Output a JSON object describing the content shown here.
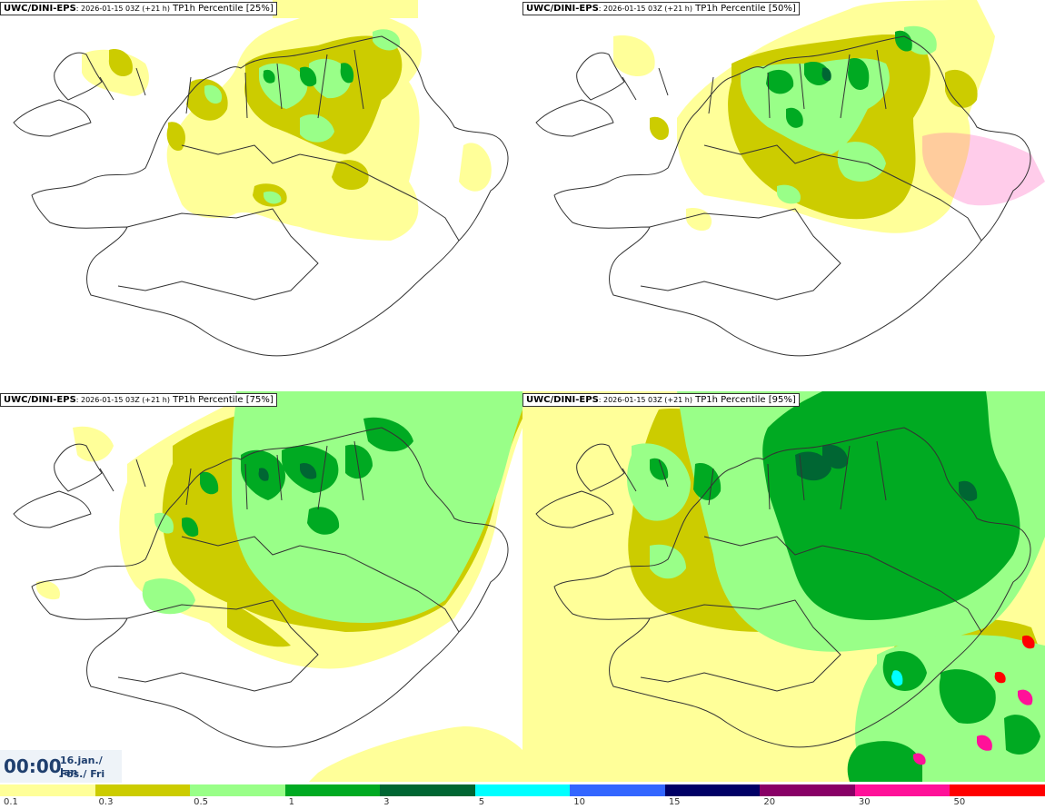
{
  "panels": [
    {
      "model": "UWC/DINI-EPS",
      "run": ": 2026-01-15 03Z (+21 h)",
      "param": " TP1h Percentile [25%]"
    },
    {
      "model": "UWC/DINI-EPS",
      "run": ": 2026-01-15 03Z (+21 h)",
      "param": " TP1h Percentile [50%]"
    },
    {
      "model": "UWC/DINI-EPS",
      "run": ": 2026-01-15 03Z (+21 h)",
      "param": " TP1h Percentile [75%]"
    },
    {
      "model": "UWC/DINI-EPS",
      "run": ": 2026-01-15 03Z (+21 h)",
      "param": " TP1h Percentile [95%]"
    }
  ],
  "clock": {
    "time": "00:00",
    "date_line1": "16.jan./ Jan",
    "date_line2": "Fös./ Fri"
  },
  "legend": {
    "colors": [
      "#ffff99",
      "#cccc00",
      "#99ff88",
      "#00aa22",
      "#006633",
      "#00ffff",
      "#3366ff",
      "#000066",
      "#880066",
      "#ff1199",
      "#ff0000"
    ],
    "ticks": [
      "0.1",
      "0.3",
      "0.5",
      "1",
      "3",
      "5",
      "10",
      "15",
      "20",
      "30",
      "50"
    ]
  }
}
